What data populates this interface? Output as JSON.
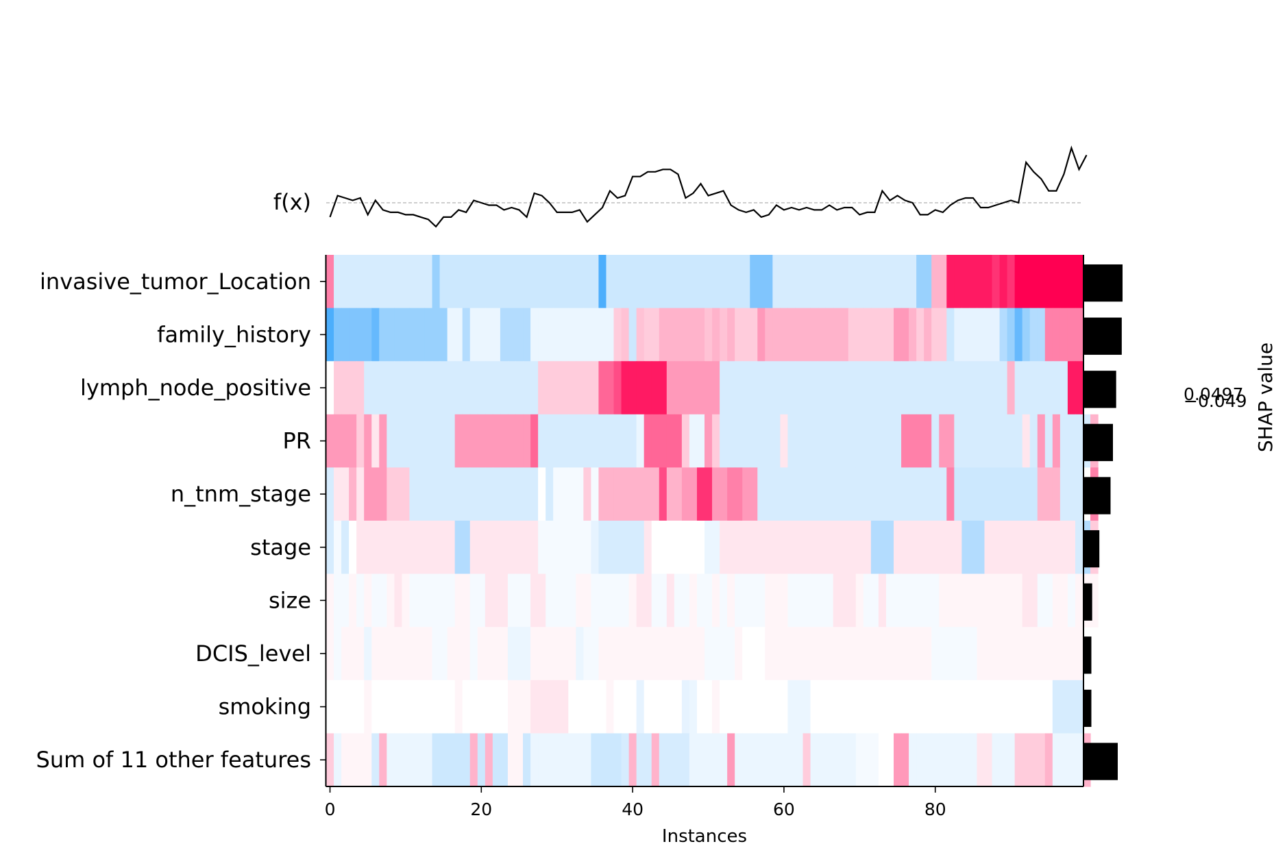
{
  "chart_data": {
    "type": "heatmap",
    "title": "",
    "xlabel": "Instances",
    "x_ticks": [
      "0",
      "20",
      "40",
      "60",
      "80"
    ],
    "x_tick_values": [
      0,
      20,
      40,
      60,
      80
    ],
    "n_instances": 100,
    "fx_label": "f(x)",
    "colorbar_label": "SHAP value",
    "colorbar_ticks": [
      "0.0497",
      "−0.049"
    ],
    "color_range": [
      -0.05,
      0.05
    ],
    "colors": {
      "negative": "#008bfb",
      "neutral": "#ffffff",
      "positive": "#ff0052",
      "bar": "#000000",
      "line": "#000000",
      "baseline": "#b0b0b0"
    },
    "features": [
      "invasive_tumor_Location",
      "family_history",
      "lymph_node_positive",
      "PR",
      "n_tnm_stage",
      "stage",
      "size",
      "DCIS_level",
      "smoking",
      "Sum of 11 other features"
    ],
    "importance": [
      0.048,
      0.047,
      0.04,
      0.036,
      0.033,
      0.019,
      0.01,
      0.009,
      0.009,
      0.042
    ],
    "fx": [
      -0.006,
      0.003,
      0.002,
      0.001,
      0.002,
      -0.005,
      0.001,
      -0.003,
      -0.004,
      -0.004,
      -0.005,
      -0.005,
      -0.006,
      -0.007,
      -0.01,
      -0.006,
      -0.006,
      -0.003,
      -0.004,
      0.001,
      0.0,
      -0.001,
      -0.001,
      -0.003,
      -0.002,
      -0.003,
      -0.006,
      0.004,
      0.003,
      0.0,
      -0.004,
      -0.004,
      -0.004,
      -0.003,
      -0.008,
      -0.005,
      -0.002,
      0.005,
      0.002,
      0.003,
      0.011,
      0.011,
      0.013,
      0.013,
      0.014,
      0.014,
      0.012,
      0.002,
      0.004,
      0.008,
      0.003,
      0.004,
      0.005,
      -0.001,
      -0.003,
      -0.004,
      -0.003,
      -0.006,
      -0.005,
      -0.001,
      -0.003,
      -0.002,
      -0.003,
      -0.002,
      -0.003,
      -0.003,
      -0.001,
      -0.003,
      -0.002,
      -0.002,
      -0.005,
      -0.004,
      -0.004,
      0.005,
      0.001,
      0.003,
      0.001,
      0.0,
      -0.005,
      -0.005,
      -0.003,
      -0.004,
      -0.001,
      0.001,
      0.002,
      0.002,
      -0.002,
      -0.002,
      -0.001,
      0.0,
      0.001,
      0.0,
      0.017,
      0.013,
      0.01,
      0.005,
      0.005,
      0.012,
      0.023,
      0.014,
      0.02
    ],
    "rows": [
      [
        0.025,
        -0.008,
        -0.008,
        -0.008,
        -0.008,
        -0.008,
        -0.008,
        -0.008,
        -0.008,
        -0.008,
        -0.008,
        -0.008,
        -0.008,
        -0.008,
        -0.02,
        -0.01,
        -0.01,
        -0.01,
        -0.01,
        -0.01,
        -0.01,
        -0.01,
        -0.01,
        -0.01,
        -0.01,
        -0.01,
        -0.01,
        -0.01,
        -0.01,
        -0.01,
        -0.01,
        -0.01,
        -0.01,
        -0.01,
        -0.01,
        -0.01,
        -0.035,
        -0.01,
        -0.01,
        -0.01,
        -0.01,
        -0.01,
        -0.01,
        -0.01,
        -0.01,
        -0.01,
        -0.01,
        -0.01,
        -0.01,
        -0.01,
        -0.01,
        -0.01,
        -0.01,
        -0.01,
        -0.01,
        -0.01,
        -0.025,
        -0.025,
        -0.025,
        -0.008,
        -0.008,
        -0.008,
        -0.008,
        -0.008,
        -0.008,
        -0.008,
        -0.008,
        -0.008,
        -0.008,
        -0.008,
        -0.008,
        -0.008,
        -0.008,
        -0.008,
        -0.008,
        -0.008,
        -0.008,
        -0.008,
        -0.02,
        -0.02,
        0.015,
        0.015,
        0.045,
        0.045,
        0.045,
        0.045,
        0.045,
        0.045,
        0.04,
        0.045,
        0.04,
        0.05,
        0.05,
        0.05,
        0.05,
        0.05,
        0.05,
        0.05,
        0.05,
        0.05
      ],
      [
        -0.035,
        -0.025,
        -0.025,
        -0.025,
        -0.025,
        -0.025,
        -0.03,
        -0.02,
        -0.02,
        -0.02,
        -0.02,
        -0.02,
        -0.02,
        -0.02,
        -0.02,
        -0.02,
        -0.004,
        -0.004,
        -0.015,
        -0.004,
        -0.004,
        -0.004,
        -0.004,
        -0.015,
        -0.015,
        -0.015,
        -0.015,
        -0.004,
        -0.004,
        -0.004,
        -0.004,
        -0.004,
        -0.004,
        -0.004,
        -0.004,
        -0.004,
        -0.004,
        -0.004,
        0.01,
        0.012,
        -0.01,
        0.012,
        0.01,
        0.01,
        0.015,
        0.015,
        0.015,
        0.015,
        0.015,
        0.015,
        0.012,
        0.015,
        0.012,
        0.015,
        0.01,
        0.01,
        0.01,
        0.02,
        0.015,
        0.015,
        0.015,
        0.015,
        0.015,
        0.015,
        0.015,
        0.015,
        0.015,
        0.015,
        0.015,
        0.01,
        0.01,
        0.01,
        0.01,
        0.01,
        0.01,
        0.02,
        0.02,
        0.015,
        0.01,
        0.015,
        0.01,
        0.01,
        -0.01,
        -0.005,
        -0.005,
        -0.005,
        -0.005,
        -0.005,
        -0.005,
        -0.015,
        -0.02,
        -0.03,
        -0.02,
        -0.015,
        -0.015,
        0.025,
        0.025,
        0.025,
        0.025,
        0.025
      ],
      [
        0.0,
        0.01,
        0.01,
        0.01,
        0.01,
        -0.008,
        -0.008,
        -0.008,
        -0.008,
        -0.008,
        -0.008,
        -0.008,
        -0.008,
        -0.008,
        -0.008,
        -0.008,
        -0.008,
        -0.008,
        -0.008,
        -0.008,
        -0.008,
        -0.008,
        -0.008,
        -0.008,
        -0.008,
        -0.008,
        -0.008,
        -0.008,
        0.01,
        0.01,
        0.01,
        0.01,
        0.01,
        0.01,
        0.01,
        0.01,
        0.03,
        0.03,
        0.035,
        0.045,
        0.045,
        0.045,
        0.045,
        0.045,
        0.045,
        0.02,
        0.02,
        0.02,
        0.02,
        0.02,
        0.02,
        0.02,
        -0.008,
        -0.008,
        -0.008,
        -0.008,
        -0.008,
        -0.008,
        -0.008,
        -0.008,
        -0.008,
        -0.008,
        -0.008,
        -0.008,
        -0.008,
        -0.008,
        -0.008,
        -0.008,
        -0.008,
        -0.008,
        -0.008,
        -0.008,
        -0.008,
        -0.008,
        -0.008,
        -0.008,
        -0.008,
        -0.008,
        -0.008,
        -0.008,
        -0.008,
        -0.008,
        -0.008,
        -0.008,
        -0.008,
        -0.008,
        -0.008,
        -0.008,
        -0.008,
        -0.008,
        0.015,
        -0.008,
        -0.008,
        -0.008,
        -0.008,
        -0.008,
        -0.008,
        -0.008,
        0.045,
        0.045
      ],
      [
        0.02,
        0.02,
        0.02,
        0.02,
        0.01,
        0.02,
        0.005,
        0.02,
        -0.008,
        -0.008,
        -0.008,
        -0.008,
        -0.008,
        -0.008,
        -0.008,
        -0.008,
        -0.008,
        0.02,
        0.02,
        0.02,
        0.02,
        0.02,
        0.02,
        0.02,
        0.02,
        0.02,
        0.02,
        0.03,
        -0.008,
        -0.008,
        -0.008,
        -0.008,
        -0.008,
        -0.008,
        -0.008,
        -0.008,
        -0.008,
        -0.008,
        -0.008,
        -0.008,
        -0.008,
        -0.004,
        0.03,
        0.03,
        0.03,
        0.03,
        0.03,
        0.01,
        -0.004,
        -0.004,
        0.02,
        0.01,
        -0.008,
        -0.008,
        -0.008,
        -0.008,
        -0.008,
        -0.008,
        -0.008,
        -0.008,
        0.005,
        -0.008,
        -0.008,
        -0.008,
        -0.008,
        -0.008,
        -0.008,
        -0.008,
        -0.008,
        -0.008,
        -0.008,
        -0.008,
        -0.008,
        -0.008,
        -0.008,
        -0.008,
        0.025,
        0.025,
        0.025,
        0.025,
        -0.008,
        0.02,
        0.02,
        -0.008,
        -0.008,
        -0.008,
        -0.008,
        -0.008,
        -0.008,
        -0.008,
        -0.008,
        -0.008,
        0.005,
        -0.008,
        0.02,
        -0.008,
        0.02,
        -0.008,
        -0.008,
        -0.008,
        -0.008,
        0.015
      ],
      [
        -0.008,
        0.005,
        0.005,
        0.015,
        0.005,
        0.02,
        0.02,
        0.02,
        0.01,
        0.01,
        0.01,
        -0.008,
        -0.008,
        -0.008,
        -0.008,
        -0.008,
        -0.008,
        -0.008,
        -0.008,
        -0.008,
        -0.008,
        -0.008,
        -0.008,
        -0.008,
        -0.008,
        -0.008,
        -0.008,
        -0.008,
        0.0,
        -0.008,
        -0.002,
        -0.002,
        -0.002,
        -0.002,
        0.01,
        -0.002,
        0.015,
        0.015,
        0.015,
        0.015,
        0.015,
        0.015,
        0.015,
        0.015,
        0.035,
        0.015,
        0.015,
        0.02,
        0.02,
        0.04,
        0.04,
        0.02,
        0.02,
        0.025,
        0.025,
        0.02,
        0.02,
        -0.008,
        -0.008,
        -0.008,
        -0.008,
        -0.008,
        -0.008,
        -0.008,
        -0.008,
        -0.008,
        -0.008,
        -0.008,
        -0.008,
        -0.008,
        -0.008,
        -0.008,
        -0.008,
        -0.008,
        -0.008,
        -0.008,
        -0.008,
        -0.008,
        -0.008,
        -0.008,
        -0.008,
        -0.008,
        0.025,
        -0.01,
        -0.01,
        -0.01,
        -0.01,
        -0.01,
        -0.01,
        -0.01,
        -0.01,
        -0.01,
        -0.01,
        -0.01,
        0.015,
        0.015,
        0.015,
        -0.008,
        -0.008,
        -0.008,
        0.0,
        0.025
      ],
      [
        -0.008,
        -0.002,
        -0.008,
        0.0,
        0.005,
        0.005,
        0.005,
        0.005,
        0.005,
        0.005,
        0.005,
        0.005,
        0.005,
        0.005,
        0.005,
        0.005,
        0.005,
        -0.015,
        -0.015,
        0.005,
        0.005,
        0.005,
        0.005,
        0.005,
        0.005,
        0.005,
        0.005,
        0.005,
        -0.002,
        -0.002,
        -0.002,
        -0.002,
        -0.002,
        -0.002,
        -0.002,
        -0.005,
        -0.008,
        -0.008,
        -0.008,
        -0.008,
        -0.008,
        -0.008,
        0.005,
        0.0,
        0.0,
        0.0,
        0.0,
        0.0,
        0.0,
        0.0,
        -0.004,
        -0.004,
        0.005,
        0.005,
        0.005,
        0.005,
        0.005,
        0.005,
        0.005,
        0.005,
        0.005,
        0.005,
        0.005,
        0.005,
        0.005,
        0.005,
        0.005,
        0.005,
        0.005,
        0.005,
        0.005,
        0.005,
        -0.015,
        -0.015,
        -0.015,
        0.005,
        0.005,
        0.005,
        0.005,
        0.005,
        0.005,
        0.005,
        0.005,
        0.005,
        -0.015,
        -0.015,
        -0.015,
        0.005,
        0.005,
        0.005,
        0.005,
        0.005,
        0.005,
        0.005,
        0.005,
        0.005,
        0.005,
        0.005,
        0.005,
        -0.008,
        -0.015,
        0.01
      ],
      [
        0.002,
        -0.002,
        -0.002,
        0.002,
        -0.002,
        0.002,
        -0.002,
        -0.002,
        0.002,
        0.005,
        0.002,
        -0.002,
        -0.002,
        -0.002,
        -0.002,
        -0.002,
        -0.002,
        0.002,
        0.002,
        -0.002,
        -0.002,
        0.005,
        0.005,
        0.005,
        -0.002,
        -0.002,
        -0.002,
        0.005,
        0.005,
        -0.002,
        -0.002,
        -0.002,
        -0.002,
        0.002,
        0.002,
        -0.002,
        -0.002,
        -0.002,
        -0.002,
        -0.002,
        0.002,
        0.005,
        0.005,
        -0.002,
        -0.002,
        0.005,
        -0.002,
        -0.002,
        0.002,
        -0.002,
        -0.002,
        0.002,
        -0.002,
        0.002,
        -0.002,
        -0.002,
        -0.002,
        -0.002,
        0.002,
        0.002,
        0.002,
        -0.002,
        -0.002,
        -0.002,
        -0.002,
        -0.002,
        -0.002,
        0.005,
        0.005,
        0.005,
        0.002,
        -0.002,
        -0.002,
        0.005,
        -0.002,
        -0.002,
        -0.002,
        -0.002,
        -0.002,
        -0.002,
        -0.002,
        0.002,
        0.002,
        0.002,
        0.002,
        0.002,
        0.002,
        0.002,
        0.002,
        0.002,
        0.002,
        0.002,
        0.005,
        0.005,
        -0.002,
        -0.002,
        0.002,
        0.002,
        -0.002,
        0.002,
        0.002,
        0.002
      ],
      [
        0.002,
        -0.002,
        0.002,
        0.002,
        0.002,
        -0.004,
        0.002,
        0.002,
        0.002,
        0.002,
        0.002,
        0.002,
        0.002,
        0.002,
        -0.002,
        -0.002,
        0.002,
        0.002,
        0.002,
        -0.002,
        0.002,
        0.002,
        0.002,
        0.002,
        -0.004,
        -0.004,
        -0.004,
        0.002,
        0.002,
        0.002,
        0.002,
        0.002,
        0.002,
        -0.004,
        -0.002,
        -0.002,
        0.002,
        0.002,
        0.002,
        0.002,
        0.002,
        0.002,
        0.002,
        0.002,
        0.002,
        0.002,
        0.002,
        0.002,
        0.002,
        0.002,
        -0.002,
        -0.002,
        -0.002,
        -0.002,
        0.002,
        0.0,
        0.0,
        0.0,
        0.002,
        0.002,
        0.002,
        0.002,
        0.002,
        0.002,
        0.002,
        0.002,
        0.002,
        0.002,
        0.002,
        0.002,
        0.002,
        0.002,
        0.002,
        0.002,
        0.002,
        0.002,
        0.002,
        0.002,
        0.002,
        0.002,
        -0.002,
        -0.002,
        -0.002,
        -0.002,
        -0.002,
        -0.002,
        0.002,
        0.002,
        0.002,
        0.002,
        0.002,
        0.002,
        0.002,
        0.002,
        0.002,
        0.002,
        0.002,
        0.002,
        0.002,
        0.002
      ],
      [
        0.0,
        0.0,
        0.0,
        0.0,
        0.0,
        0.002,
        0.0,
        0.0,
        0.0,
        0.0,
        0.0,
        0.0,
        0.0,
        0.0,
        0.0,
        0.0,
        0.0,
        0.002,
        0.0,
        0.0,
        0.0,
        0.0,
        0.0,
        0.0,
        0.002,
        0.002,
        0.002,
        0.005,
        0.005,
        0.005,
        0.005,
        0.005,
        0.0,
        0.0,
        0.0,
        0.0,
        0.0,
        0.002,
        0.0,
        0.0,
        0.0,
        -0.005,
        0.0,
        0.0,
        0.0,
        0.0,
        0.0,
        -0.005,
        -0.004,
        0.0,
        0.0,
        0.002,
        0.0,
        0.0,
        0.0,
        0.0,
        0.0,
        0.0,
        0.0,
        0.0,
        0.0,
        -0.004,
        -0.004,
        -0.004,
        0.0,
        0.0,
        0.0,
        0.0,
        0.0,
        0.0,
        0.0,
        0.0,
        0.0,
        0.0,
        0.0,
        0.0,
        0.0,
        0.0,
        0.0,
        0.0,
        0.0,
        0.0,
        0.0,
        0.0,
        0.0,
        0.0,
        0.0,
        0.0,
        0.0,
        0.0,
        0.0,
        0.0,
        0.0,
        0.0,
        0.0,
        0.0,
        -0.008,
        -0.008,
        -0.008,
        -0.008,
        0.0,
        0.0
      ],
      [
        0.01,
        -0.004,
        0.002,
        0.002,
        0.002,
        0.002,
        -0.008,
        0.015,
        -0.004,
        -0.004,
        -0.004,
        -0.004,
        -0.004,
        -0.004,
        -0.01,
        -0.01,
        -0.01,
        -0.01,
        -0.01,
        0.015,
        -0.01,
        0.015,
        -0.01,
        -0.01,
        0.002,
        0.002,
        -0.01,
        -0.004,
        -0.004,
        -0.004,
        -0.004,
        -0.004,
        -0.004,
        -0.004,
        -0.004,
        -0.01,
        -0.01,
        -0.01,
        -0.01,
        -0.008,
        0.015,
        -0.008,
        -0.008,
        0.015,
        -0.008,
        -0.008,
        -0.008,
        -0.008,
        -0.004,
        -0.004,
        -0.004,
        -0.004,
        -0.004,
        0.02,
        -0.004,
        -0.004,
        -0.004,
        -0.004,
        -0.004,
        -0.004,
        -0.004,
        -0.004,
        -0.004,
        0.01,
        -0.004,
        -0.004,
        -0.004,
        -0.004,
        -0.004,
        -0.004,
        -0.002,
        -0.002,
        -0.002,
        0.0,
        0.0,
        0.02,
        0.02,
        -0.004,
        -0.004,
        -0.004,
        -0.004,
        -0.004,
        -0.004,
        -0.004,
        -0.004,
        -0.004,
        0.005,
        0.005,
        -0.004,
        -0.004,
        -0.004,
        0.01,
        0.01,
        0.01,
        0.01,
        0.015,
        -0.004,
        -0.004,
        -0.004,
        -0.004,
        0.015
      ]
    ]
  }
}
